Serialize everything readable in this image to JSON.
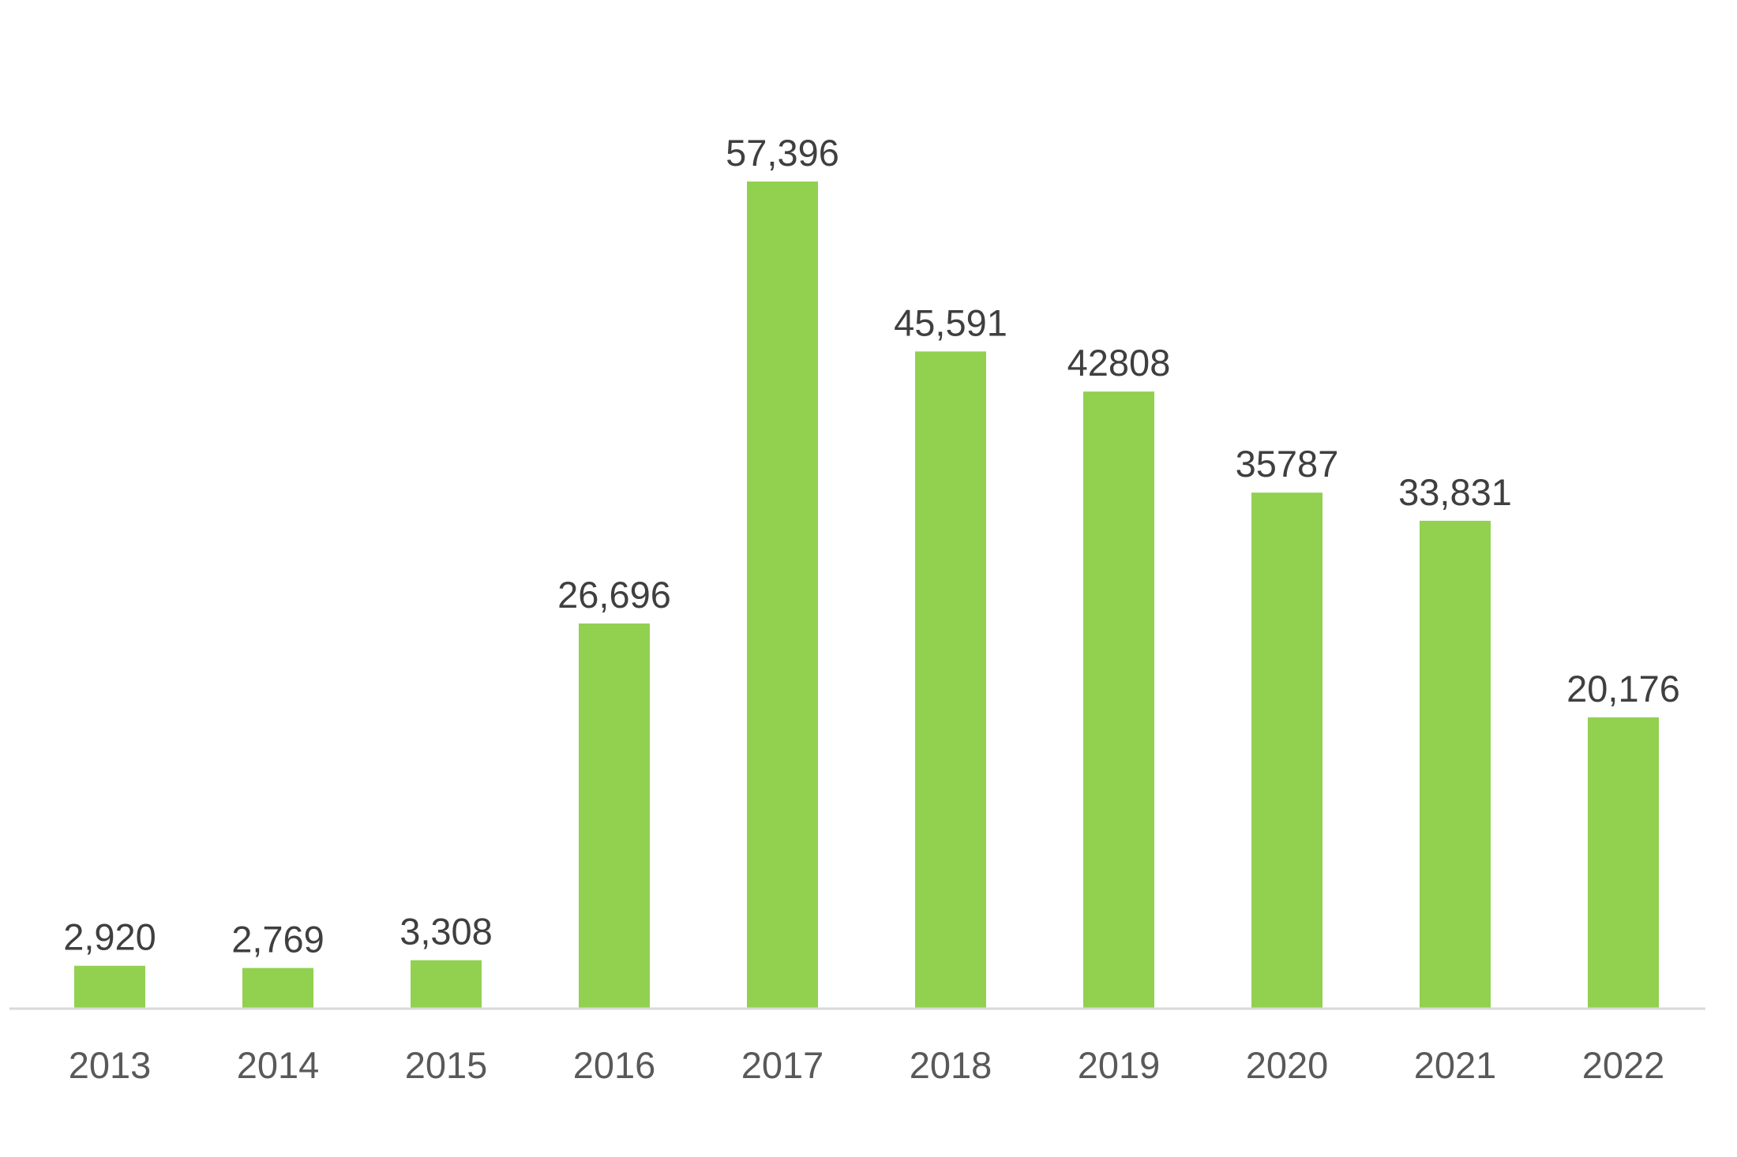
{
  "chart_data": {
    "type": "bar",
    "title": "",
    "xlabel": "",
    "ylabel": "",
    "categories": [
      "2013",
      "2014",
      "2015",
      "2016",
      "2017",
      "2018",
      "2019",
      "2020",
      "2021",
      "2022"
    ],
    "values": [
      2920,
      2769,
      3308,
      26696,
      57396,
      45591,
      42808,
      35787,
      33831,
      20176
    ],
    "data_labels": [
      "2,920",
      "2,769",
      "3,308",
      "26,696",
      "57,396",
      "45,591",
      "42808",
      "35787",
      "33,831",
      "20,176"
    ],
    "ylim": [
      0,
      57396
    ],
    "grid": false,
    "legend": "none",
    "colors": {
      "bar": "#92d050",
      "axis_line": "#d9d9d9",
      "data_label": "#3f3f3f",
      "tick_label": "#595959"
    }
  }
}
